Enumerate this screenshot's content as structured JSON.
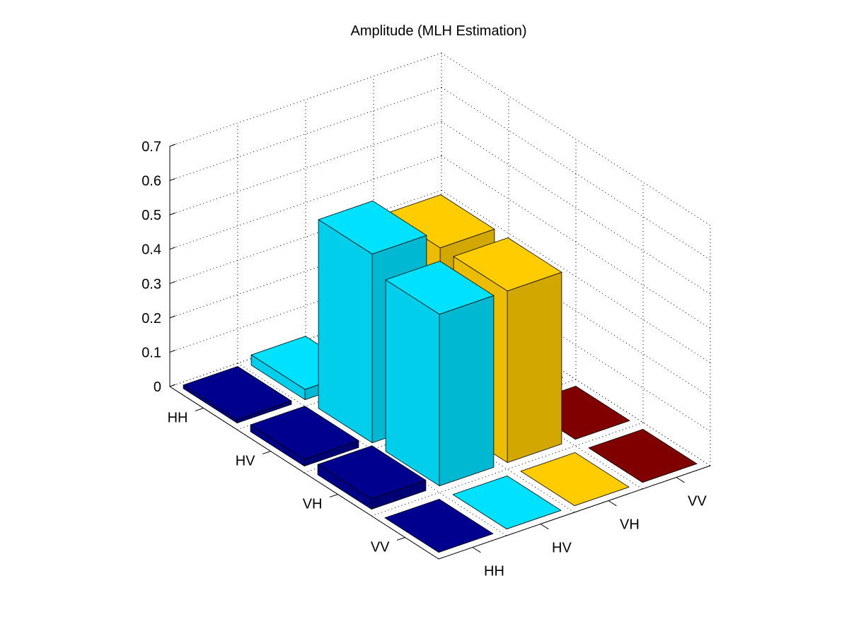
{
  "chart_data": {
    "type": "bar3",
    "title": "Amplitude (MLH Estimation)",
    "row_categories": [
      "HH",
      "HV",
      "VH",
      "VV"
    ],
    "col_categories": [
      "HH",
      "HV",
      "VH",
      "VV"
    ],
    "zlim": [
      0,
      0.7
    ],
    "z_ticks": [
      "0",
      "0.1",
      "0.2",
      "0.3",
      "0.4",
      "0.5",
      "0.6",
      "0.7"
    ],
    "grid": true,
    "series_colors": [
      "#00008F",
      "#00E0FF",
      "#FFCC00",
      "#800000"
    ],
    "values": [
      [
        0.01,
        0.03,
        0.0,
        0.0
      ],
      [
        0.02,
        0.55,
        0.5,
        0.0
      ],
      [
        0.03,
        0.5,
        0.5,
        0.0
      ],
      [
        0.0,
        0.0,
        0.0,
        0.0
      ]
    ]
  }
}
